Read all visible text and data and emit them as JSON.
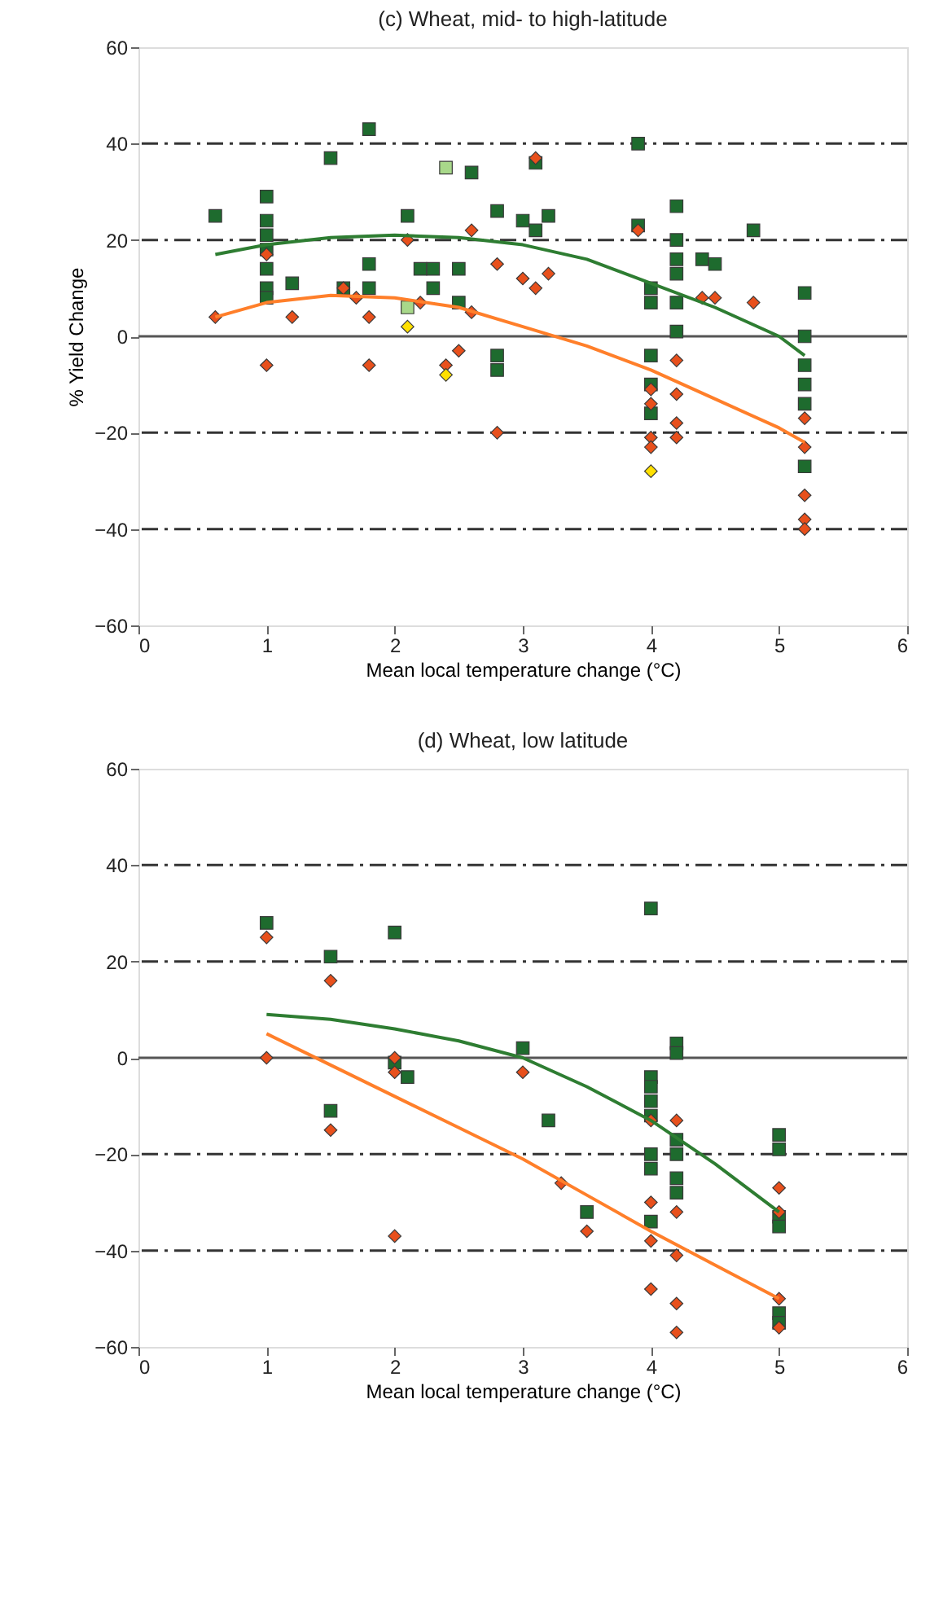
{
  "chart_data": [
    {
      "type": "scatter",
      "title": "(c) Wheat, mid- to high-latitude",
      "xlabel": "Mean local temperature change (°C)",
      "ylabel": "% Yield Change",
      "xlim": [
        0,
        6
      ],
      "xticks": [
        0,
        1,
        2,
        3,
        4,
        5,
        6
      ],
      "ylim": [
        -60,
        60
      ],
      "yticks": [
        -60,
        -40,
        -20,
        0,
        20,
        40,
        60
      ],
      "grid": false,
      "ref_lines": [
        {
          "axis": "y",
          "value": 0,
          "line_style": "solid",
          "color": "#555555"
        },
        {
          "axis": "y",
          "value": 20,
          "line_style": "dashed",
          "color": "#333333"
        },
        {
          "axis": "y",
          "value": 40,
          "line_style": "dashed",
          "color": "#333333"
        },
        {
          "axis": "y",
          "value": -20,
          "line_style": "dashed",
          "color": "#333333"
        },
        {
          "axis": "y",
          "value": -40,
          "line_style": "dashed",
          "color": "#333333"
        }
      ],
      "series": [
        {
          "marker": "square",
          "color": "#1e6b2e",
          "x": [
            0.6,
            1.0,
            1.0,
            1.0,
            1.0,
            1.0,
            1.0,
            1.0,
            1.2,
            1.5,
            1.6,
            1.8,
            1.8,
            1.8,
            2.1,
            2.2,
            2.3,
            2.3,
            2.5,
            2.5,
            2.6,
            2.8,
            2.8,
            2.8,
            3.0,
            3.1,
            3.1,
            3.2,
            3.9,
            3.9,
            4.0,
            4.0,
            4.0,
            4.0,
            4.0,
            4.2,
            4.2,
            4.2,
            4.2,
            4.2,
            4.2,
            4.4,
            4.5,
            4.8,
            5.2,
            5.2,
            5.2,
            5.2,
            5.2,
            5.2
          ],
          "values": [
            25,
            29,
            24,
            21,
            18,
            14,
            10,
            8,
            11,
            37,
            10,
            43,
            15,
            10,
            25,
            14,
            14,
            10,
            14,
            7,
            34,
            26,
            -4,
            -7,
            24,
            36,
            22,
            25,
            40,
            23,
            10,
            7,
            -4,
            -10,
            -16,
            27,
            20,
            16,
            13,
            7,
            1,
            16,
            15,
            22,
            9,
            0,
            -6,
            -10,
            -14,
            -27
          ]
        },
        {
          "marker": "square",
          "color": "#a8d88a",
          "x": [
            2.4,
            2.1
          ],
          "values": [
            35,
            6
          ]
        },
        {
          "marker": "diamond",
          "color": "#e8501c",
          "x": [
            0.6,
            1.0,
            1.0,
            1.2,
            1.6,
            1.7,
            1.8,
            1.8,
            2.1,
            2.2,
            2.4,
            2.5,
            2.6,
            2.6,
            2.8,
            2.8,
            3.0,
            3.1,
            3.2,
            3.1,
            3.9,
            4.0,
            4.0,
            4.0,
            4.0,
            4.2,
            4.2,
            4.2,
            4.2,
            4.4,
            4.5,
            4.8,
            5.2,
            5.2,
            5.2,
            5.2,
            5.2
          ],
          "values": [
            4,
            17,
            -6,
            4,
            10,
            8,
            4,
            -6,
            20,
            7,
            -6,
            -3,
            22,
            5,
            15,
            -20,
            12,
            10,
            13,
            37,
            22,
            -11,
            -14,
            -21,
            -23,
            -5,
            -12,
            -18,
            -21,
            8,
            8,
            7,
            -17,
            -23,
            -33,
            -38,
            -40
          ]
        },
        {
          "marker": "diamond",
          "color": "#ffe000",
          "x": [
            2.1,
            2.4,
            4.0
          ],
          "values": [
            2,
            -8,
            -28
          ]
        },
        {
          "type": "line",
          "color": "#2e7d32",
          "x": [
            0.6,
            1.0,
            1.5,
            2.0,
            2.5,
            3.0,
            3.5,
            4.0,
            4.5,
            5.0,
            5.2
          ],
          "values": [
            17,
            19,
            20.5,
            21,
            20.5,
            19,
            16,
            11,
            6,
            0,
            -4
          ]
        },
        {
          "type": "line",
          "color": "#ff7f2a",
          "x": [
            0.6,
            1.0,
            1.5,
            2.0,
            2.5,
            3.0,
            3.5,
            4.0,
            4.5,
            5.0,
            5.2
          ],
          "values": [
            4,
            7,
            8.5,
            8,
            6,
            2,
            -2,
            -7,
            -13,
            -19,
            -22
          ]
        }
      ]
    },
    {
      "type": "scatter",
      "title": "(d) Wheat, low latitude",
      "xlabel": "Mean local temperature change (°C)",
      "xlim": [
        0,
        6
      ],
      "xticks": [
        0,
        1,
        2,
        3,
        4,
        5,
        6
      ],
      "ylim": [
        -60,
        60
      ],
      "yticks": [
        -60,
        -40,
        -20,
        0,
        20,
        40,
        60
      ],
      "grid": false,
      "ref_lines": [
        {
          "axis": "y",
          "value": 0,
          "line_style": "solid",
          "color": "#555555"
        },
        {
          "axis": "y",
          "value": 20,
          "line_style": "dashed",
          "color": "#333333"
        },
        {
          "axis": "y",
          "value": 40,
          "line_style": "dashed",
          "color": "#333333"
        },
        {
          "axis": "y",
          "value": -20,
          "line_style": "dashed",
          "color": "#333333"
        },
        {
          "axis": "y",
          "value": -40,
          "line_style": "dashed",
          "color": "#333333"
        }
      ],
      "series": [
        {
          "marker": "square",
          "color": "#1e6b2e",
          "x": [
            1.0,
            1.5,
            1.5,
            2.0,
            2.0,
            2.1,
            3.0,
            3.2,
            3.5,
            4.0,
            4.0,
            4.0,
            4.0,
            4.0,
            4.0,
            4.0,
            4.0,
            4.2,
            4.2,
            4.2,
            4.2,
            4.2,
            4.2,
            5.0,
            5.0,
            5.0,
            5.0,
            5.0,
            5.0
          ],
          "values": [
            28,
            21,
            -11,
            26,
            -1,
            -4,
            2,
            -13,
            -32,
            31,
            -4,
            -6,
            -9,
            -12,
            -20,
            -23,
            -34,
            3,
            1,
            -17,
            -20,
            -25,
            -28,
            -16,
            -19,
            -33,
            -35,
            -53,
            -55
          ]
        },
        {
          "marker": "diamond",
          "color": "#e8501c",
          "x": [
            1.0,
            1.0,
            1.5,
            1.5,
            2.0,
            2.0,
            2.0,
            3.0,
            3.3,
            3.5,
            4.0,
            4.0,
            4.0,
            4.0,
            4.2,
            4.2,
            4.2,
            4.2,
            4.2,
            5.0,
            5.0,
            5.0,
            5.0
          ],
          "values": [
            25,
            0,
            16,
            -15,
            0,
            -3,
            -37,
            -3,
            -26,
            -36,
            -13,
            -30,
            -38,
            -48,
            -13,
            -32,
            -41,
            -51,
            -57,
            -27,
            -32,
            -50,
            -56
          ]
        },
        {
          "type": "line",
          "color": "#2e7d32",
          "x": [
            1.0,
            1.5,
            2.0,
            2.5,
            3.0,
            3.5,
            4.0,
            4.5,
            5.0
          ],
          "values": [
            9,
            8,
            6,
            3.5,
            0,
            -6,
            -13,
            -22,
            -32
          ]
        },
        {
          "type": "line",
          "color": "#ff7f2a",
          "x": [
            1.0,
            1.5,
            2.0,
            2.5,
            3.0,
            3.5,
            4.0,
            4.5,
            5.0
          ],
          "values": [
            5,
            -1.5,
            -8,
            -14.5,
            -21,
            -28.5,
            -36,
            -43,
            -50
          ]
        }
      ]
    }
  ]
}
